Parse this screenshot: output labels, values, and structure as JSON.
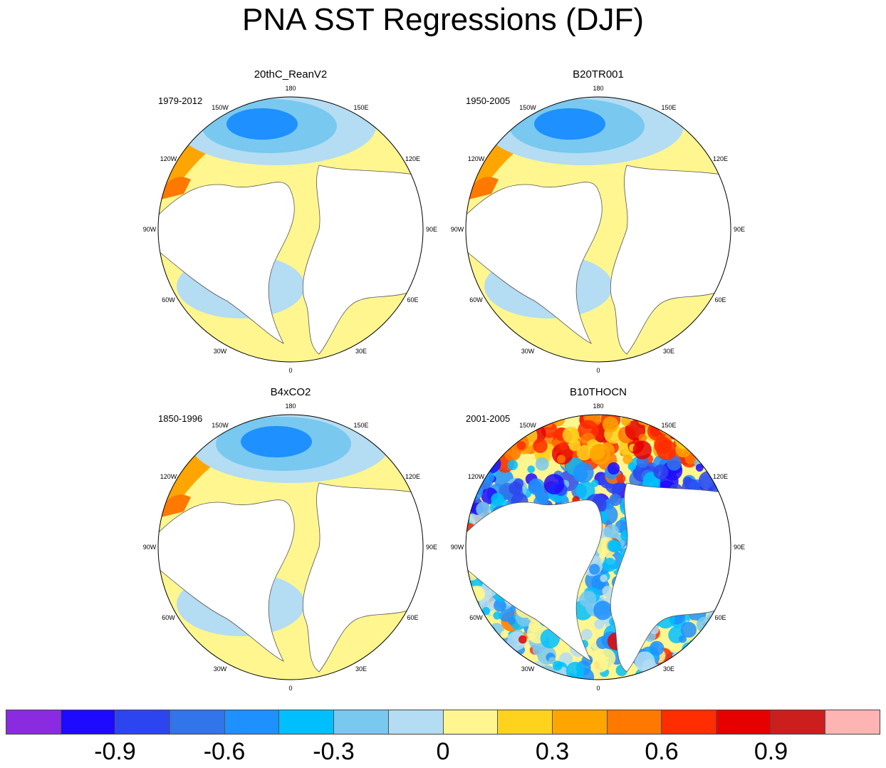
{
  "title": "PNA SST Regressions (DJF)",
  "panels": [
    {
      "name": "20thC_ReanV2",
      "years": "1979-2012",
      "style": "smooth-a"
    },
    {
      "name": "B20TR001",
      "years": "1950-2005",
      "style": "smooth-b"
    },
    {
      "name": "B4xCO2",
      "years": "1850-1996",
      "style": "smooth-c"
    },
    {
      "name": "B10THOCN",
      "years": "2001-2005",
      "style": "noisy"
    }
  ],
  "longitude_labels": [
    "180",
    "150E",
    "120E",
    "90E",
    "60E",
    "30E",
    "0",
    "30W",
    "60W",
    "90W",
    "120W",
    "150W"
  ],
  "colorbar": {
    "colors": [
      "#8a2be2",
      "#1e0aff",
      "#2d45f0",
      "#3274ea",
      "#1e90ff",
      "#00bfff",
      "#78c8f0",
      "#b4dcf2",
      "#fff68f",
      "#ffd21e",
      "#ffa500",
      "#ff7800",
      "#ff2d00",
      "#e60000",
      "#cd1e1e",
      "#ffb4b4"
    ],
    "tick_labels": [
      "-0.9",
      "-0.6",
      "-0.3",
      "0",
      "0.3",
      "0.6",
      "0.9"
    ]
  }
}
